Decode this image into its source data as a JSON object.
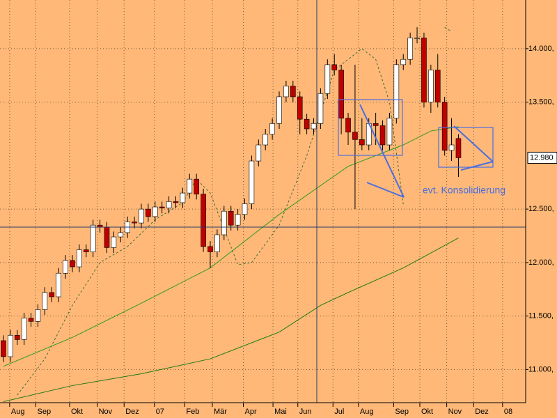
{
  "chart_data": {
    "type": "candlestick",
    "background": "#ffb877",
    "up_color": "#ffffff",
    "down_color": "#c00000",
    "grid": true,
    "xlim": [
      -0.5,
      75.75
    ],
    "ylim": [
      10690,
      14455
    ],
    "xticks": [
      {
        "value": 0.9,
        "label": "Aug"
      },
      {
        "value": 4.7,
        "label": "Sep"
      },
      {
        "value": 9.6,
        "label": "Okt"
      },
      {
        "value": 13.6,
        "label": "Nov"
      },
      {
        "value": 17.5,
        "label": "Dez"
      },
      {
        "value": 21.9,
        "label": "07"
      },
      {
        "value": 26.3,
        "label": "Feb"
      },
      {
        "value": 30.3,
        "label": "Mär"
      },
      {
        "value": 34.8,
        "label": "Apr"
      },
      {
        "value": 39.1,
        "label": "Mai"
      },
      {
        "value": 42.7,
        "label": "Jun"
      },
      {
        "value": 47.8,
        "label": "Jul"
      },
      {
        "value": 51.5,
        "label": "Aug"
      },
      {
        "value": 56.6,
        "label": "Sep"
      },
      {
        "value": 60.4,
        "label": "Okt"
      },
      {
        "value": 64.3,
        "label": "Nov"
      },
      {
        "value": 68.2,
        "label": "Dez"
      },
      {
        "value": 72.4,
        "label": "08"
      }
    ],
    "yticks": [
      {
        "value": 14000,
        "label": "14.000,"
      },
      {
        "value": 13500,
        "label": "13.500,"
      },
      {
        "value": 12500,
        "label": "12.500,"
      },
      {
        "value": 12000,
        "label": "12.000,"
      },
      {
        "value": 11500,
        "label": "11.500,"
      },
      {
        "value": 11000,
        "label": "11.000,"
      }
    ],
    "current_value": {
      "value": 12980,
      "label": "12.980"
    },
    "annotation": "evt. Konsolidierung",
    "x": [
      0,
      1,
      2,
      3,
      4,
      5,
      6,
      7,
      8,
      9,
      10,
      11,
      12,
      13,
      14,
      15,
      16,
      17,
      18,
      19,
      20,
      21,
      22,
      23,
      24,
      25,
      26,
      27,
      28,
      29,
      30,
      31,
      32,
      33,
      34,
      35,
      36,
      37,
      38,
      39,
      40,
      41,
      42,
      43,
      44,
      45,
      46,
      47,
      48,
      49,
      50,
      51,
      52,
      53,
      54,
      55,
      56,
      57,
      58,
      59,
      60,
      61,
      62,
      63,
      64,
      65,
      66
    ],
    "open": [
      11270,
      11120,
      11320,
      11280,
      11480,
      11450,
      11560,
      11720,
      11680,
      11900,
      12020,
      11960,
      12120,
      12100,
      12350,
      12330,
      12140,
      12240,
      12280,
      12380,
      12370,
      12500,
      12430,
      12520,
      12510,
      12570,
      12560,
      12650,
      12780,
      12640,
      12150,
      12100,
      12260,
      12480,
      12350,
      12450,
      12550,
      12950,
      13100,
      13200,
      13300,
      13550,
      13650,
      13550,
      13340,
      13250,
      13300,
      13580,
      13850,
      13800,
      13350,
      13220,
      13150,
      13100,
      13300,
      13280,
      13100,
      13350,
      13850,
      13900,
      14100,
      14100,
      13500,
      13800,
      13500,
      13050,
      13160
    ],
    "high": [
      11320,
      11370,
      11370,
      11530,
      11530,
      11610,
      11770,
      11770,
      11950,
      12070,
      12070,
      12170,
      12170,
      12400,
      12400,
      12380,
      12290,
      12330,
      12430,
      12430,
      12550,
      12550,
      12570,
      12570,
      12620,
      12620,
      12700,
      12830,
      12830,
      12690,
      12200,
      12310,
      12530,
      12530,
      12500,
      12600,
      13000,
      13150,
      13250,
      13350,
      13600,
      13700,
      13700,
      13600,
      13390,
      13350,
      13630,
      13900,
      13950,
      13850,
      13400,
      13850,
      13350,
      13350,
      13400,
      13330,
      13400,
      13900,
      13950,
      14150,
      14200,
      14150,
      13850,
      13950,
      13550,
      13350,
      13200
    ],
    "low": [
      11070,
      11070,
      11230,
      11230,
      11400,
      11400,
      11510,
      11630,
      11630,
      11850,
      11910,
      11910,
      12050,
      12050,
      12280,
      12090,
      12090,
      12190,
      12230,
      12320,
      12320,
      12380,
      12380,
      12460,
      12460,
      12510,
      12510,
      12600,
      12590,
      12100,
      11950,
      12050,
      12210,
      12300,
      12300,
      12400,
      12500,
      12900,
      13050,
      13150,
      13250,
      13500,
      13500,
      13200,
      13200,
      13200,
      13250,
      13530,
      13750,
      13200,
      13100,
      12500,
      13050,
      13050,
      13100,
      13050,
      13050,
      13300,
      13800,
      13850,
      14050,
      13450,
      13400,
      13450,
      13000,
      12950,
      12800
    ],
    "close": [
      11120,
      11320,
      11280,
      11480,
      11450,
      11560,
      11720,
      11680,
      11900,
      12020,
      11960,
      12120,
      12100,
      12350,
      12330,
      12140,
      12240,
      12280,
      12380,
      12370,
      12500,
      12430,
      12520,
      12510,
      12570,
      12560,
      12650,
      12780,
      12640,
      12150,
      12100,
      12260,
      12480,
      12350,
      12450,
      12550,
      12950,
      13100,
      13200,
      13300,
      13550,
      13650,
      13550,
      13340,
      13250,
      13300,
      13580,
      13850,
      13800,
      13350,
      13220,
      13150,
      13100,
      13300,
      13280,
      13100,
      13350,
      13850,
      13900,
      14100,
      14100,
      13500,
      13800,
      13500,
      13050,
      13100,
      12980
    ],
    "lines": [
      {
        "color": "#2e9a1e",
        "dash": false,
        "x": [
          0,
          10,
          20,
          30,
          40,
          50,
          58,
          62,
          66
        ],
        "values": [
          11030,
          11300,
          11620,
          11950,
          12450,
          12900,
          13100,
          13230,
          13270
        ]
      },
      {
        "color": "#1f7a14",
        "dash": false,
        "x": [
          0,
          10,
          20,
          30,
          40,
          46,
          50,
          58,
          66
        ],
        "values": [
          10700,
          10850,
          10960,
          11100,
          11350,
          11600,
          11720,
          11950,
          12230
        ]
      },
      {
        "color": "#3c6e3c",
        "dash": true,
        "x": [
          2,
          6,
          10,
          14,
          18,
          22,
          26,
          28,
          30,
          34,
          36,
          40,
          44,
          48,
          52,
          54,
          56,
          58,
          60,
          64,
          65
        ],
        "values": [
          10760,
          11100,
          11600,
          12000,
          12150,
          12400,
          12560,
          12780,
          12650,
          11980,
          12000,
          12350,
          13000,
          13800,
          14000,
          13900,
          13500,
          12545,
          null,
          14200,
          14160
        ]
      }
    ]
  }
}
